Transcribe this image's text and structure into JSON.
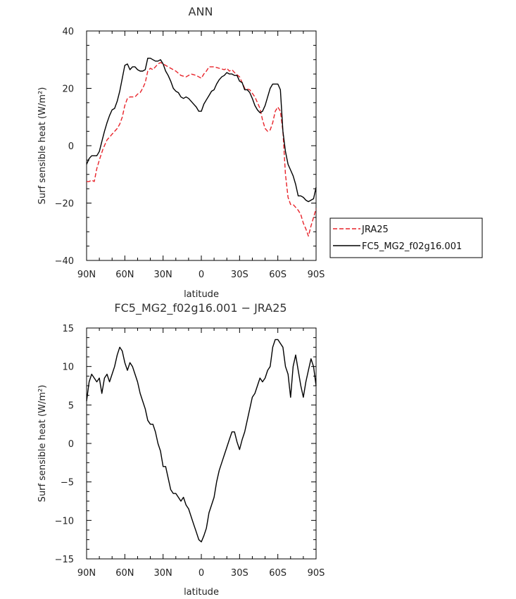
{
  "chart_data": [
    {
      "type": "line",
      "title": "ANN",
      "xlabel": "latitude",
      "ylabel": "Surf sensible heat (W/m²)",
      "xlim": [
        90,
        -90
      ],
      "ylim": [
        -40,
        40
      ],
      "xticks": [
        {
          "value": 90,
          "label": "90N"
        },
        {
          "value": 60,
          "label": "60N"
        },
        {
          "value": 30,
          "label": "30N"
        },
        {
          "value": 0,
          "label": "0"
        },
        {
          "value": -30,
          "label": "30S"
        },
        {
          "value": -60,
          "label": "60S"
        },
        {
          "value": -90,
          "label": "90S"
        }
      ],
      "yticks": [
        {
          "value": 40,
          "label": "40"
        },
        {
          "value": 20,
          "label": "20"
        },
        {
          "value": 0,
          "label": "0"
        },
        {
          "value": -20,
          "label": "−20"
        },
        {
          "value": -40,
          "label": "−40"
        }
      ],
      "legend": "outside-right",
      "series": [
        {
          "name": "JRA25",
          "color": "#e8232a",
          "dash": "6,3",
          "x": [
            90,
            88,
            86,
            84,
            82,
            80,
            77,
            74,
            71,
            68,
            66,
            64,
            62,
            60,
            58,
            56,
            52,
            50,
            48,
            46,
            44,
            42,
            40,
            38,
            36,
            34,
            32,
            28,
            24,
            20,
            16,
            12,
            8,
            4,
            2,
            0,
            -2,
            -4,
            -6,
            -8,
            -10,
            -14,
            -18,
            -20,
            -22,
            -24,
            -26,
            -30,
            -34,
            -38,
            -42,
            -46,
            -48,
            -50,
            -52,
            -54,
            -56,
            -58,
            -60,
            -62,
            -64,
            -66,
            -68,
            -70,
            -72,
            -74,
            -76,
            -78,
            -80,
            -82,
            -84,
            -86,
            -88,
            -90
          ],
          "y": [
            -12.5,
            -12.5,
            -12,
            -12.5,
            -8,
            -5,
            -1,
            2,
            3.5,
            5,
            6,
            7.5,
            10,
            14,
            16.5,
            17,
            17,
            18,
            18.5,
            20,
            22,
            26,
            27,
            26.5,
            27.5,
            28.5,
            29,
            28,
            27,
            26,
            24.5,
            24,
            25,
            24.5,
            24,
            23.5,
            25,
            26,
            27.5,
            27.5,
            27.5,
            27,
            26.5,
            27,
            26,
            26.5,
            25.5,
            24,
            20,
            19.5,
            17,
            13,
            9,
            6,
            5,
            5.5,
            8,
            12,
            13.5,
            12,
            5,
            -10,
            -18,
            -20.5,
            -20.5,
            -21.5,
            -22.5,
            -24,
            -27,
            -29,
            -31.5,
            -28,
            -25,
            -22
          ]
        },
        {
          "name": "FC5_MG2_f02g16.001",
          "color": "#000000",
          "dash": "",
          "x": [
            90,
            88,
            86,
            84,
            82,
            80,
            78,
            76,
            74,
            72,
            70,
            68,
            66,
            64,
            62,
            60,
            58,
            56,
            54,
            52,
            50,
            48,
            46,
            44,
            42,
            40,
            38,
            36,
            34,
            32,
            30,
            28,
            26,
            24,
            22,
            20,
            18,
            16,
            14,
            12,
            10,
            8,
            6,
            4,
            2,
            0,
            -2,
            -4,
            -6,
            -8,
            -10,
            -12,
            -14,
            -16,
            -18,
            -20,
            -22,
            -24,
            -26,
            -28,
            -30,
            -32,
            -34,
            -36,
            -38,
            -40,
            -42,
            -44,
            -46,
            -48,
            -50,
            -52,
            -54,
            -56,
            -58,
            -60,
            -62,
            -64,
            -66,
            -68,
            -70,
            -72,
            -74,
            -76,
            -78,
            -80,
            -82,
            -84,
            -86,
            -88,
            -90
          ],
          "y": [
            -6.5,
            -4.5,
            -3.5,
            -3.5,
            -3.5,
            -2,
            1.5,
            5,
            8,
            10.5,
            12.5,
            13,
            15.5,
            19,
            23.5,
            28,
            28.5,
            26.5,
            27.5,
            27.5,
            26.5,
            26,
            26,
            26.5,
            30.5,
            30.5,
            30,
            29.5,
            29.5,
            30,
            28.5,
            26,
            24.5,
            22.5,
            20,
            19,
            18.5,
            17,
            16.5,
            17,
            16.5,
            15.5,
            14.5,
            13.5,
            12,
            12,
            14.5,
            16,
            17.5,
            19,
            19.5,
            21.5,
            23,
            24,
            24.5,
            25.5,
            25,
            25,
            24.5,
            24.5,
            22.5,
            22,
            19.5,
            19.5,
            18.5,
            16.5,
            14,
            12.5,
            11.5,
            12,
            14,
            17,
            20,
            21.5,
            21.5,
            21.5,
            19.5,
            5,
            -2,
            -6.5,
            -8.5,
            -10.5,
            -13.5,
            -17.5,
            -17.5,
            -18,
            -19,
            -19.5,
            -19,
            -18.5,
            -14.5
          ]
        }
      ]
    },
    {
      "type": "line",
      "title": "FC5_MG2_f02g16.001 − JRA25",
      "xlabel": "latitude",
      "ylabel": "Surf sensible heat (W/m²)",
      "xlim": [
        90,
        -90
      ],
      "ylim": [
        -15,
        15
      ],
      "xticks": [
        {
          "value": 90,
          "label": "90N"
        },
        {
          "value": 60,
          "label": "60N"
        },
        {
          "value": 30,
          "label": "30N"
        },
        {
          "value": 0,
          "label": "0"
        },
        {
          "value": -30,
          "label": "30S"
        },
        {
          "value": -60,
          "label": "60S"
        },
        {
          "value": -90,
          "label": "90S"
        }
      ],
      "yticks": [
        {
          "value": 15,
          "label": "15"
        },
        {
          "value": 10,
          "label": "10"
        },
        {
          "value": 5,
          "label": "5"
        },
        {
          "value": 0,
          "label": "0"
        },
        {
          "value": -5,
          "label": "−5"
        },
        {
          "value": -10,
          "label": "−10"
        },
        {
          "value": -15,
          "label": "−15"
        }
      ],
      "series": [
        {
          "color": "#000000",
          "dash": "",
          "x": [
            90,
            88,
            86,
            84,
            82,
            80,
            78,
            76,
            74,
            72,
            70,
            68,
            66,
            64,
            62,
            60,
            58,
            56,
            54,
            52,
            50,
            48,
            46,
            44,
            42,
            40,
            38,
            36,
            34,
            32,
            30,
            28,
            26,
            24,
            22,
            20,
            18,
            16,
            14,
            12,
            10,
            8,
            6,
            4,
            2,
            0,
            -2,
            -4,
            -6,
            -8,
            -10,
            -12,
            -14,
            -16,
            -18,
            -20,
            -22,
            -24,
            -26,
            -28,
            -30,
            -32,
            -34,
            -36,
            -38,
            -40,
            -42,
            -44,
            -46,
            -48,
            -50,
            -52,
            -54,
            -56,
            -58,
            -60,
            -62,
            -64,
            -66,
            -68,
            -70,
            -72,
            -74,
            -76,
            -78,
            -80,
            -82,
            -84,
            -86,
            -88,
            -90
          ],
          "y": [
            5.5,
            8,
            9,
            8.5,
            8,
            8.5,
            6.5,
            8.5,
            9,
            8,
            9,
            10,
            11.5,
            12.5,
            12,
            10.5,
            9.5,
            10.5,
            10,
            9,
            8,
            6.5,
            5.5,
            4.5,
            3,
            2.5,
            2.5,
            1.5,
            0,
            -1,
            -3,
            -3,
            -4.5,
            -6,
            -6.5,
            -6.5,
            -7,
            -7.5,
            -7,
            -8,
            -8.5,
            -9.5,
            -10.5,
            -11.5,
            -12.5,
            -12.8,
            -12,
            -11,
            -9,
            -8,
            -7,
            -5,
            -3.5,
            -2.5,
            -1.5,
            -0.5,
            0.5,
            1.5,
            1.5,
            0.2,
            -0.8,
            0.5,
            1.5,
            3,
            4.5,
            6,
            6.5,
            7.5,
            8.5,
            8,
            8.5,
            9.5,
            10,
            12.5,
            13.5,
            13.5,
            13,
            12.5,
            10,
            9,
            6,
            10,
            11.5,
            9.5,
            7.5,
            6,
            8,
            9.5,
            11,
            10,
            7.5
          ]
        }
      ]
    }
  ],
  "legend_labels": [
    "JRA25",
    "FC5_MG2_f02g16.001"
  ]
}
